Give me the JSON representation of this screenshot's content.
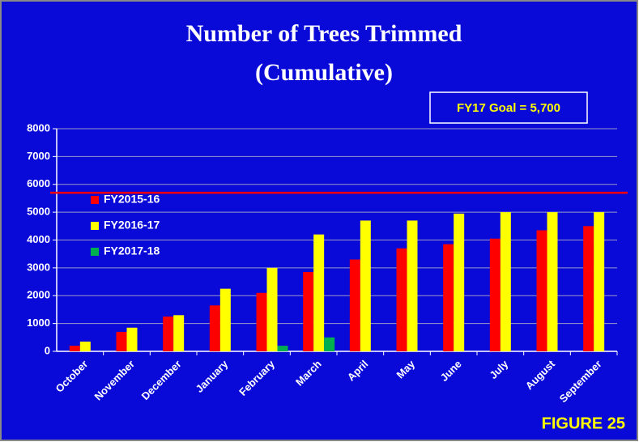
{
  "chart_data": {
    "type": "bar",
    "title": "Number of Trees Trimmed",
    "subtitle": "(Cumulative)",
    "annotation": "FY17 Goal = 5,700",
    "goal": 5700,
    "goal_color": "#ff0000",
    "figure_label": "FIGURE 25",
    "categories": [
      "October",
      "November",
      "December",
      "January",
      "February",
      "March",
      "April",
      "May",
      "June",
      "July",
      "August",
      "September"
    ],
    "series": [
      {
        "name": "FY2015-16",
        "color": "#ff0000",
        "values": [
          200,
          700,
          1250,
          1650,
          2100,
          2850,
          3300,
          3700,
          3850,
          4050,
          4350,
          4500
        ]
      },
      {
        "name": "FY2016-17",
        "color": "#ffff00",
        "values": [
          350,
          850,
          1300,
          2250,
          3000,
          4200,
          4700,
          4700,
          4950,
          5000,
          5000,
          5000
        ]
      },
      {
        "name": "FY2017-18",
        "color": "#00b050",
        "values": [
          null,
          null,
          null,
          null,
          200,
          500,
          null,
          null,
          null,
          null,
          null,
          null
        ]
      }
    ],
    "ylim": [
      0,
      8000
    ],
    "yticks": [
      0,
      1000,
      2000,
      3000,
      4000,
      5000,
      6000,
      7000,
      8000
    ],
    "grid": true,
    "legend": "upper left"
  }
}
